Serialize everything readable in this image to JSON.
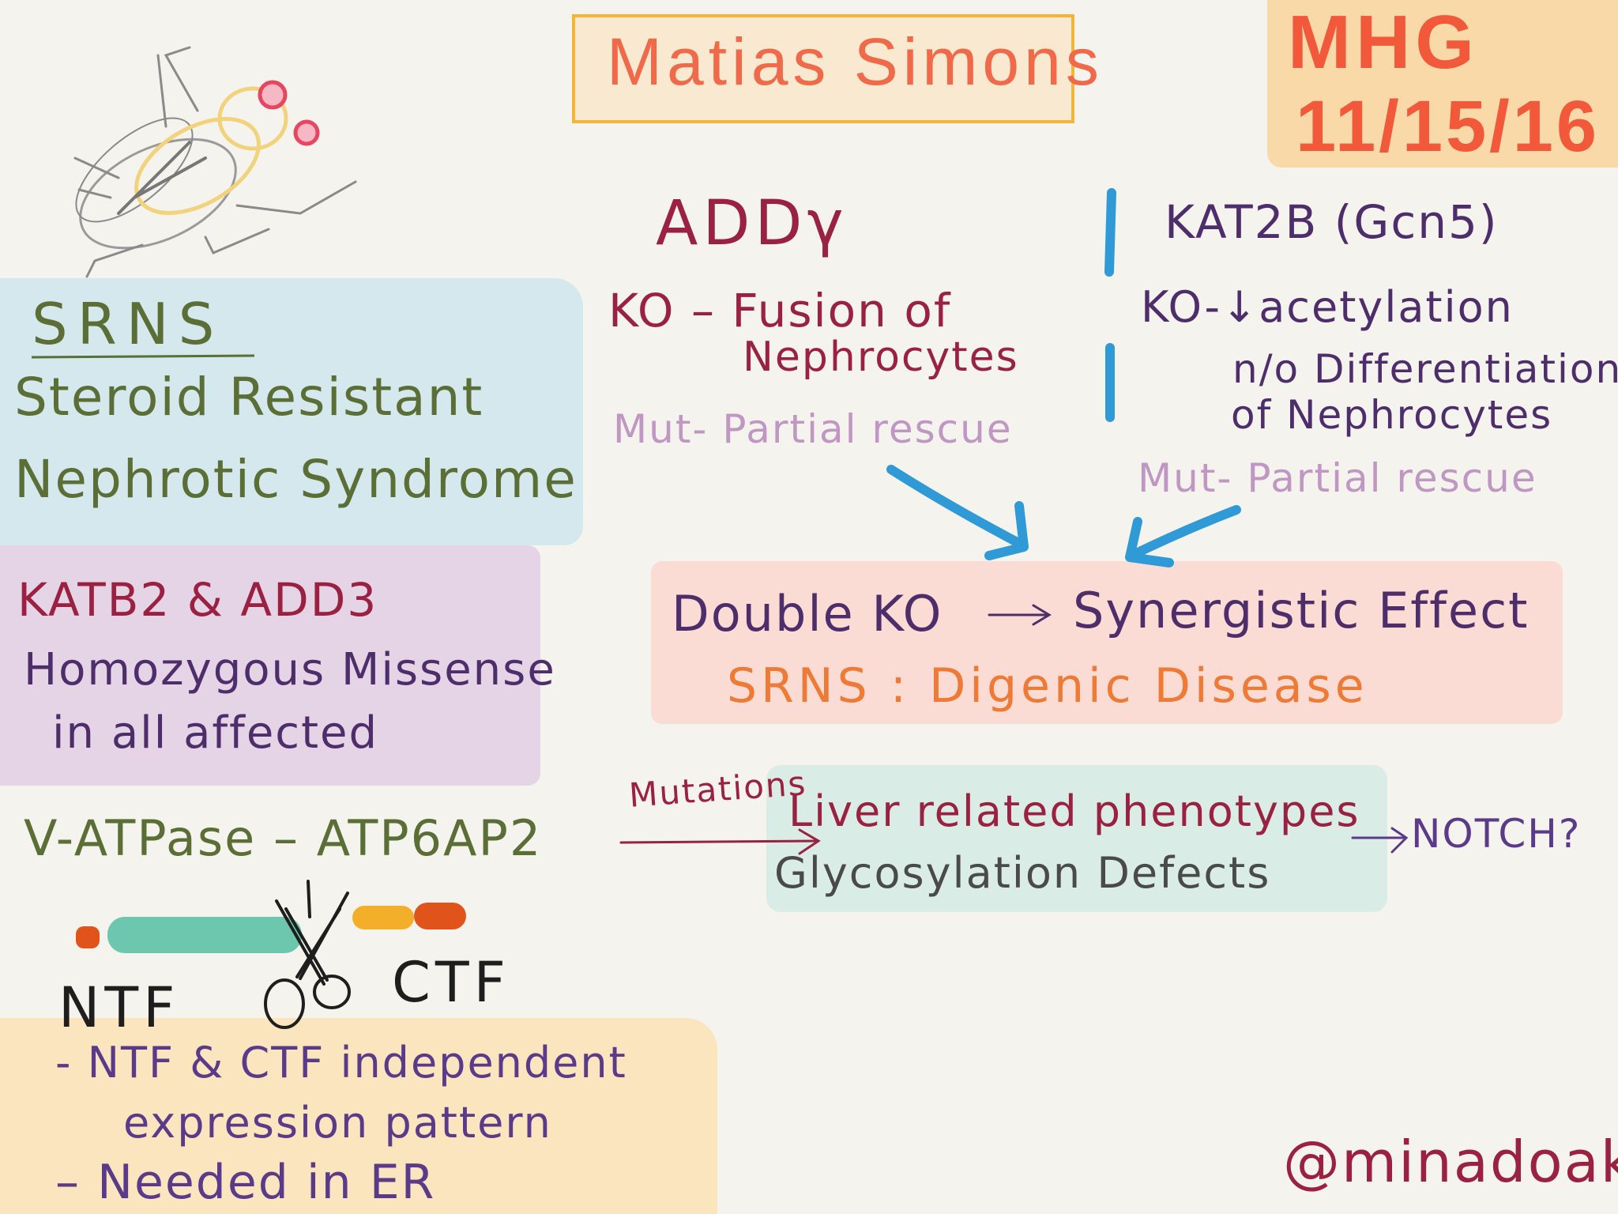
{
  "colors": {
    "page_bg": "#f5f3ee",
    "title_text": "#f06a4a",
    "title_box_bg": "#f8e9d0",
    "title_box_border": "#f2b53a",
    "date_bg": "#fad9a8",
    "date_text": "#f2583a",
    "blue_box": "#d4e8ee",
    "purple_box": "#e5d3e6",
    "pink_box": "#fbdcd4",
    "teal_box": "#d9ede6",
    "orange_box": "#fbe5be",
    "green_text": "#5a6e35",
    "crimson_text": "#9a2142",
    "plum_text": "#4e2d6b",
    "lilac_text": "#c097c2",
    "orange_text": "#ef7a35",
    "arrow_blue": "#2f9ad6",
    "dark_text": "#1e1e1e",
    "purple_text": "#5b3a8a"
  },
  "title": "Matias Simons",
  "date": {
    "line1": "MHG",
    "line2": "11/15/16"
  },
  "srns": {
    "abbrev": "SRNS",
    "line1": "Steroid Resistant",
    "line2": "Nephrotic Syndrome"
  },
  "kat_add": {
    "heading": "KATB2 & ADD3",
    "line1": "Homozygous Missense",
    "line2": "in all affected"
  },
  "add_column": {
    "gene": "ADDγ",
    "ko": "KO – Fusion of",
    "ko2": "Nephrocytes",
    "mut": "Mut- Partial rescue"
  },
  "kat_column": {
    "gene": "KAT2B (Gcn5)",
    "ko": "KO-↓acetylation",
    "ko2": "n/o Differentiation",
    "ko3": "of Nephrocytes",
    "mut": "Mut- Partial rescue"
  },
  "double_ko": {
    "line1_a": "Double KO",
    "line1_b": "Synergistic Effect",
    "line2": "SRNS : Digenic Disease"
  },
  "vatpase": {
    "label": "V-ATPase – ATP6AP2",
    "arrow_label": "Mutations",
    "liver": "Liver related phenotypes",
    "glyco": "Glycosylation Defects",
    "notch": "NOTCH?"
  },
  "fragments": {
    "ntf": "NTF",
    "ctf": "CTF"
  },
  "notes": {
    "line1": "- NTF & CTF  independent",
    "line2": "expression pattern",
    "line3": "– Needed in ER"
  },
  "signature": "@minadoak"
}
